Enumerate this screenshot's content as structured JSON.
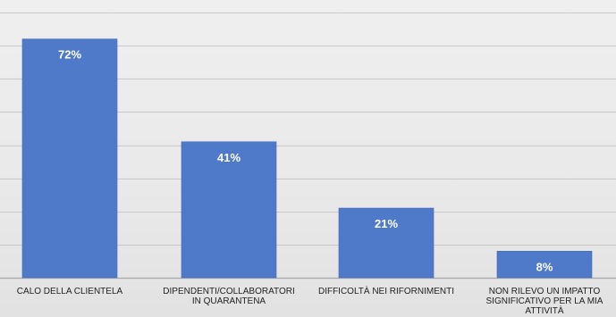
{
  "chart_data": {
    "type": "bar",
    "title": "",
    "xlabel": "",
    "ylabel": "",
    "categories": [
      [
        "CALO DELLA CLIENTELA"
      ],
      [
        "DIPENDENTI/COLLABORATORI",
        "IN QUARANTENA"
      ],
      [
        "DIFFICOLTÀ NEI RIFORNIMENTI"
      ],
      [
        "NON RILEVO UN IMPATTO",
        "SIGNIFICATIVO PER LA MIA",
        "ATTIVITÀ"
      ]
    ],
    "values": [
      72,
      41,
      21,
      8
    ],
    "value_labels": [
      "72%",
      "41%",
      "21%",
      "8%"
    ],
    "ylim": [
      0,
      80
    ],
    "gridlines": true,
    "gridline_step": 10,
    "legend": "none",
    "colors": {
      "bar": "#4f7ac9",
      "bar_edge": "#3f69b8",
      "grid": "#c8c8c8",
      "axis": "#a8a8a8",
      "label_text": "#222222",
      "value_text": "#ffffff"
    }
  }
}
